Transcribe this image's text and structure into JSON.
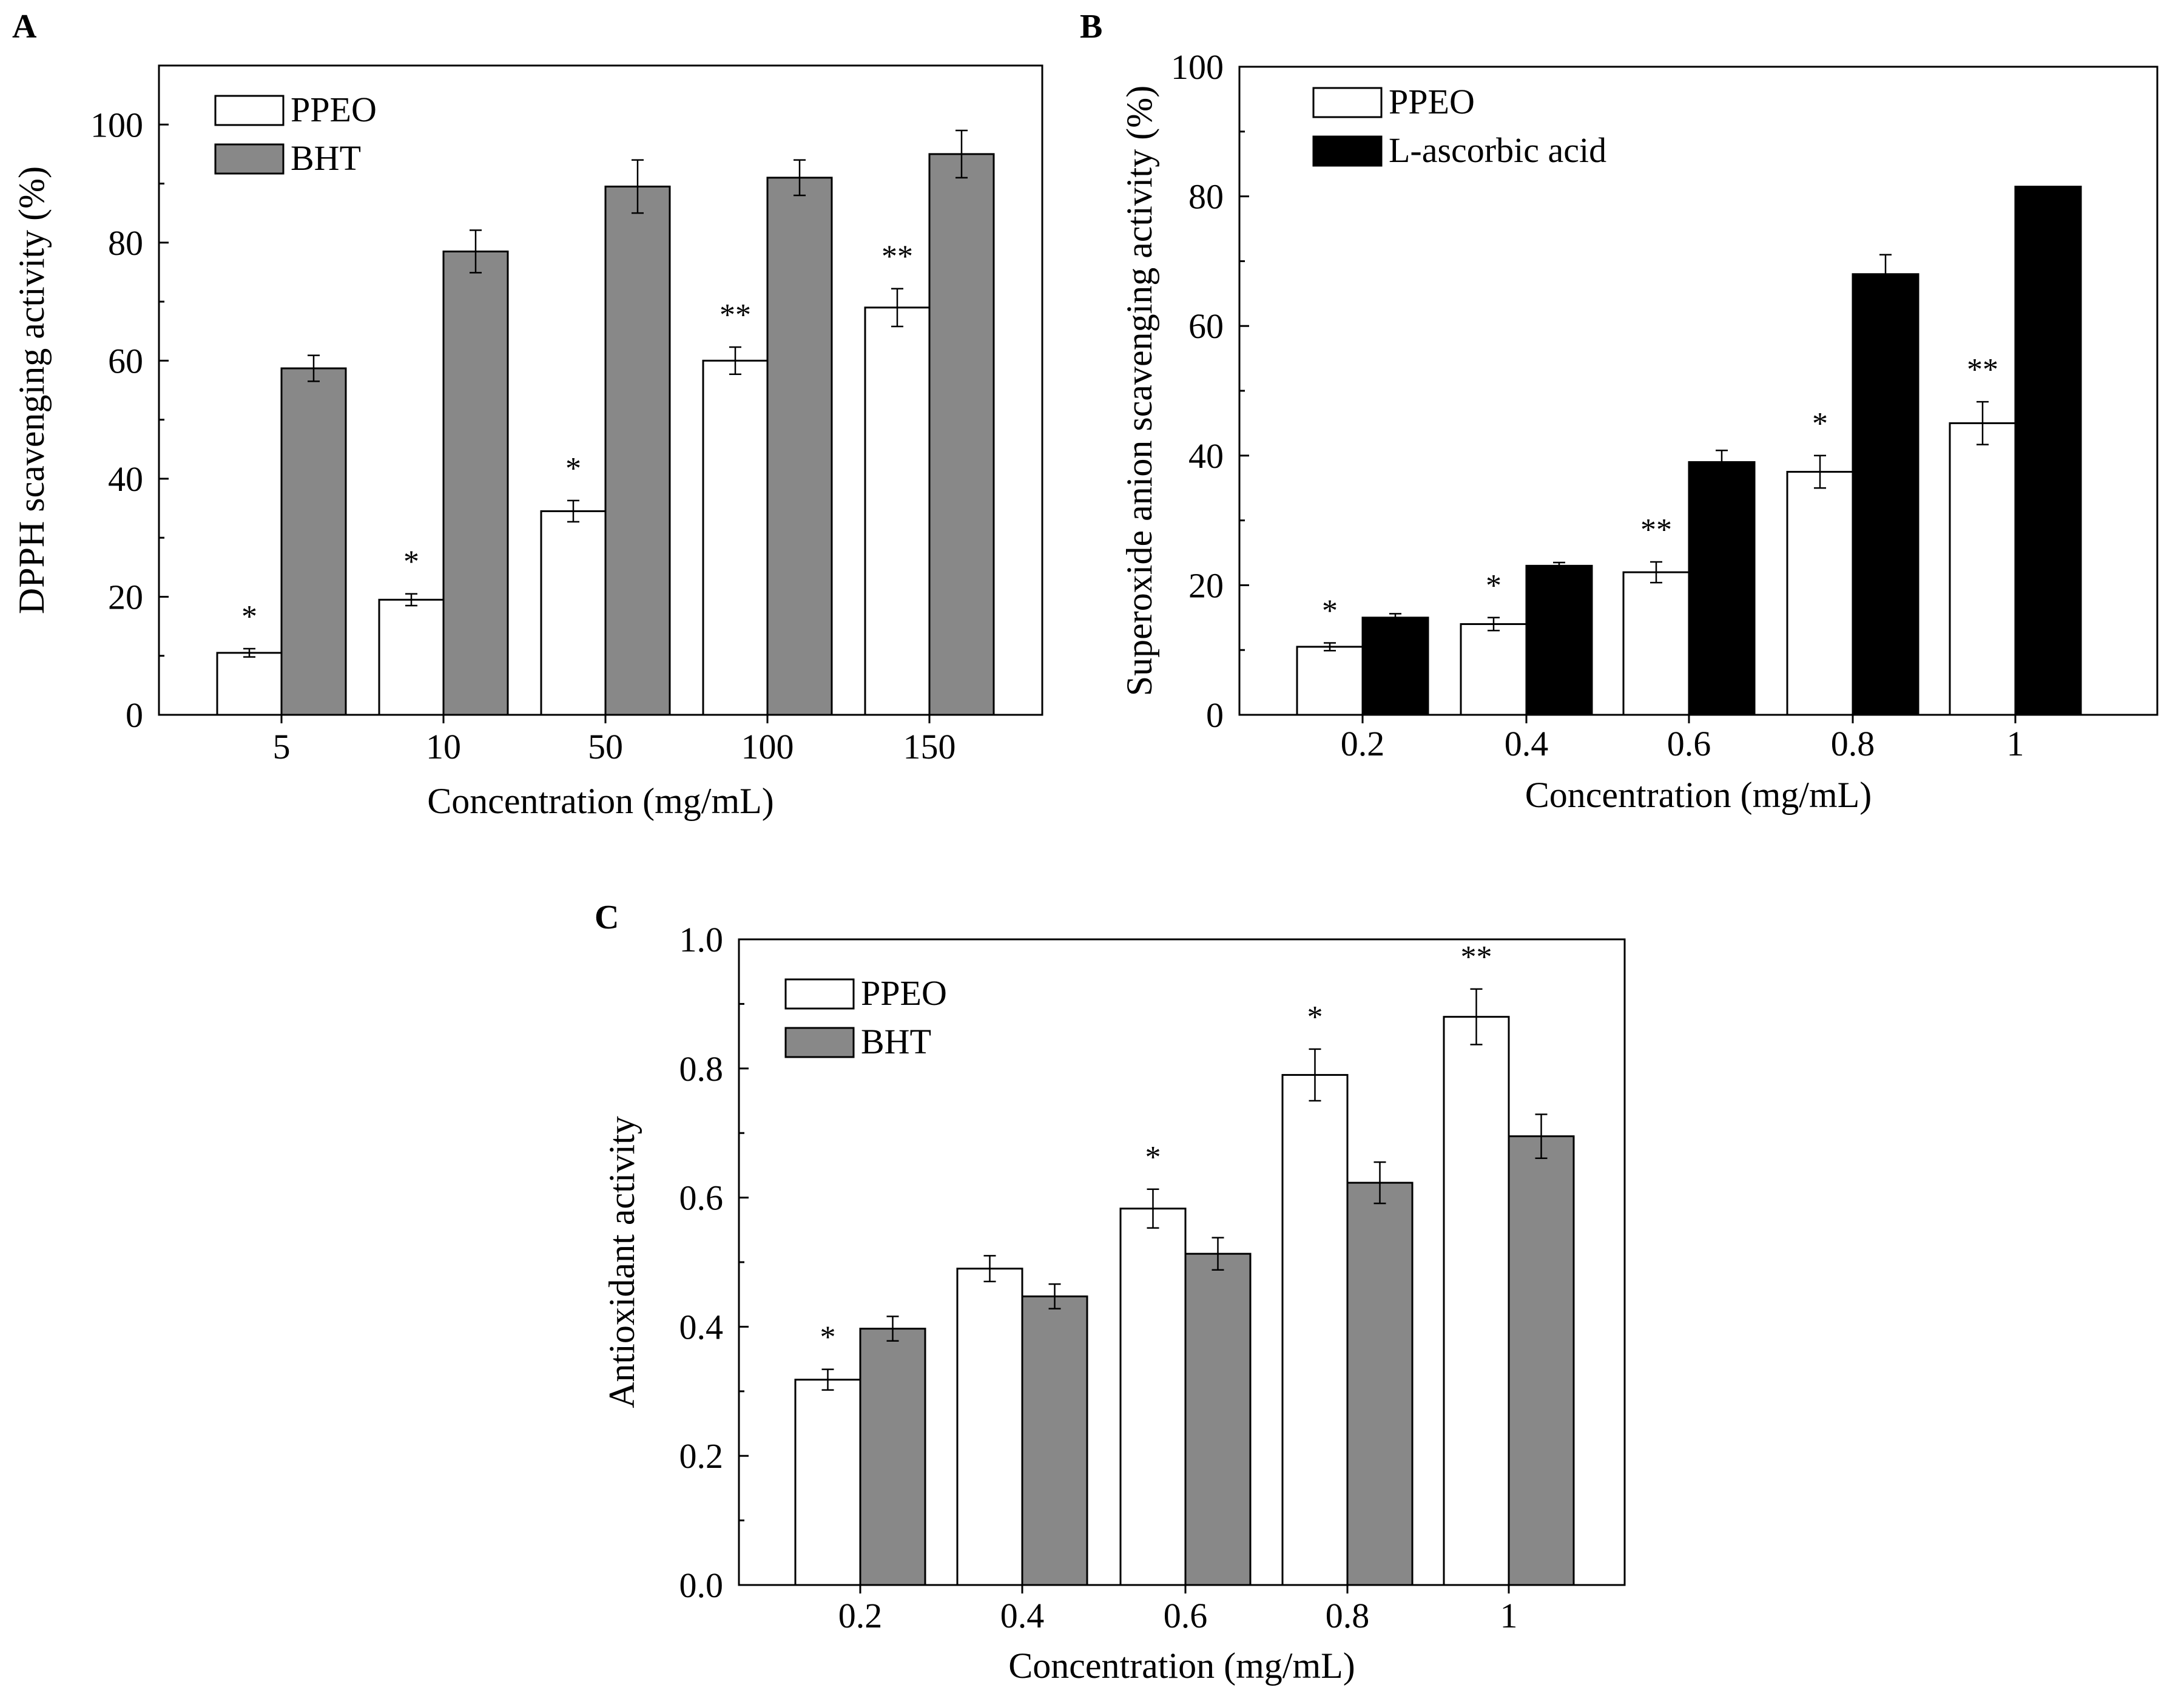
{
  "chart_data": [
    {
      "panel": "A",
      "type": "bar",
      "title": "",
      "xlabel": "Concentration (mg/mL)",
      "ylabel": "DPPH scavenging activity (%)",
      "ylim": [
        0,
        110
      ],
      "yticks": [
        "0",
        "20",
        "40",
        "60",
        "80",
        "100"
      ],
      "yticks_values": [
        0,
        20,
        40,
        60,
        80,
        100
      ],
      "categories": [
        "5",
        "10",
        "50",
        "100",
        "150"
      ],
      "legend_position": "top-left",
      "series": [
        {
          "name": "PPEO",
          "color": "#ffffff",
          "values": [
            10.5,
            19.5,
            34.5,
            60,
            69
          ],
          "errors": [
            0.7,
            1.0,
            1.8,
            2.3,
            3.2
          ]
        },
        {
          "name": "BHT",
          "color": "#888888",
          "values": [
            58.7,
            78.5,
            89.5,
            91,
            95
          ],
          "errors": [
            2.2,
            3.6,
            4.5,
            3.0,
            4.0
          ]
        }
      ],
      "significance": [
        "*",
        "*",
        "*",
        "**",
        "**"
      ]
    },
    {
      "panel": "B",
      "type": "bar",
      "title": "",
      "xlabel": "Concentration (mg/mL)",
      "ylabel": "Superoxide anion scavenging activity (%)",
      "ylim": [
        0,
        100
      ],
      "yticks": [
        "0",
        "20",
        "40",
        "60",
        "80",
        "100"
      ],
      "yticks_values": [
        0,
        20,
        40,
        60,
        80,
        100
      ],
      "categories": [
        "0.2",
        "0.4",
        "0.6",
        "0.8",
        "1"
      ],
      "legend_position": "top-left",
      "series": [
        {
          "name": "PPEO",
          "color": "#ffffff",
          "values": [
            10.5,
            14,
            22,
            37.5,
            45
          ],
          "errors": [
            0.6,
            1.0,
            1.6,
            2.5,
            3.3
          ]
        },
        {
          "name": "L-ascorbic acid",
          "color": "#000000",
          "values": [
            15,
            23,
            39,
            68,
            81.5
          ],
          "errors": [
            0.6,
            0.5,
            1.8,
            3.0,
            0
          ]
        }
      ],
      "significance": [
        "*",
        "*",
        "**",
        "*",
        "**"
      ]
    },
    {
      "panel": "C",
      "type": "bar",
      "title": "",
      "xlabel": "Concentration (mg/mL)",
      "ylabel": "Antioxidant activity",
      "ylim": [
        0,
        1.0
      ],
      "yticks": [
        "0.0",
        "0.2",
        "0.4",
        "0.6",
        "0.8",
        "1.0"
      ],
      "yticks_values": [
        0,
        0.2,
        0.4,
        0.6,
        0.8,
        1.0
      ],
      "categories": [
        "0.2",
        "0.4",
        "0.6",
        "0.8",
        "1"
      ],
      "legend_position": "top-left",
      "series": [
        {
          "name": "PPEO",
          "color": "#ffffff",
          "values": [
            0.318,
            0.49,
            0.583,
            0.79,
            0.88
          ],
          "errors": [
            0.016,
            0.02,
            0.03,
            0.04,
            0.043
          ]
        },
        {
          "name": "BHT",
          "color": "#888888",
          "values": [
            0.397,
            0.447,
            0.513,
            0.623,
            0.695
          ],
          "errors": [
            0.019,
            0.019,
            0.025,
            0.032,
            0.034
          ]
        }
      ],
      "significance": [
        "*",
        "",
        "*",
        "*",
        "**"
      ]
    }
  ]
}
